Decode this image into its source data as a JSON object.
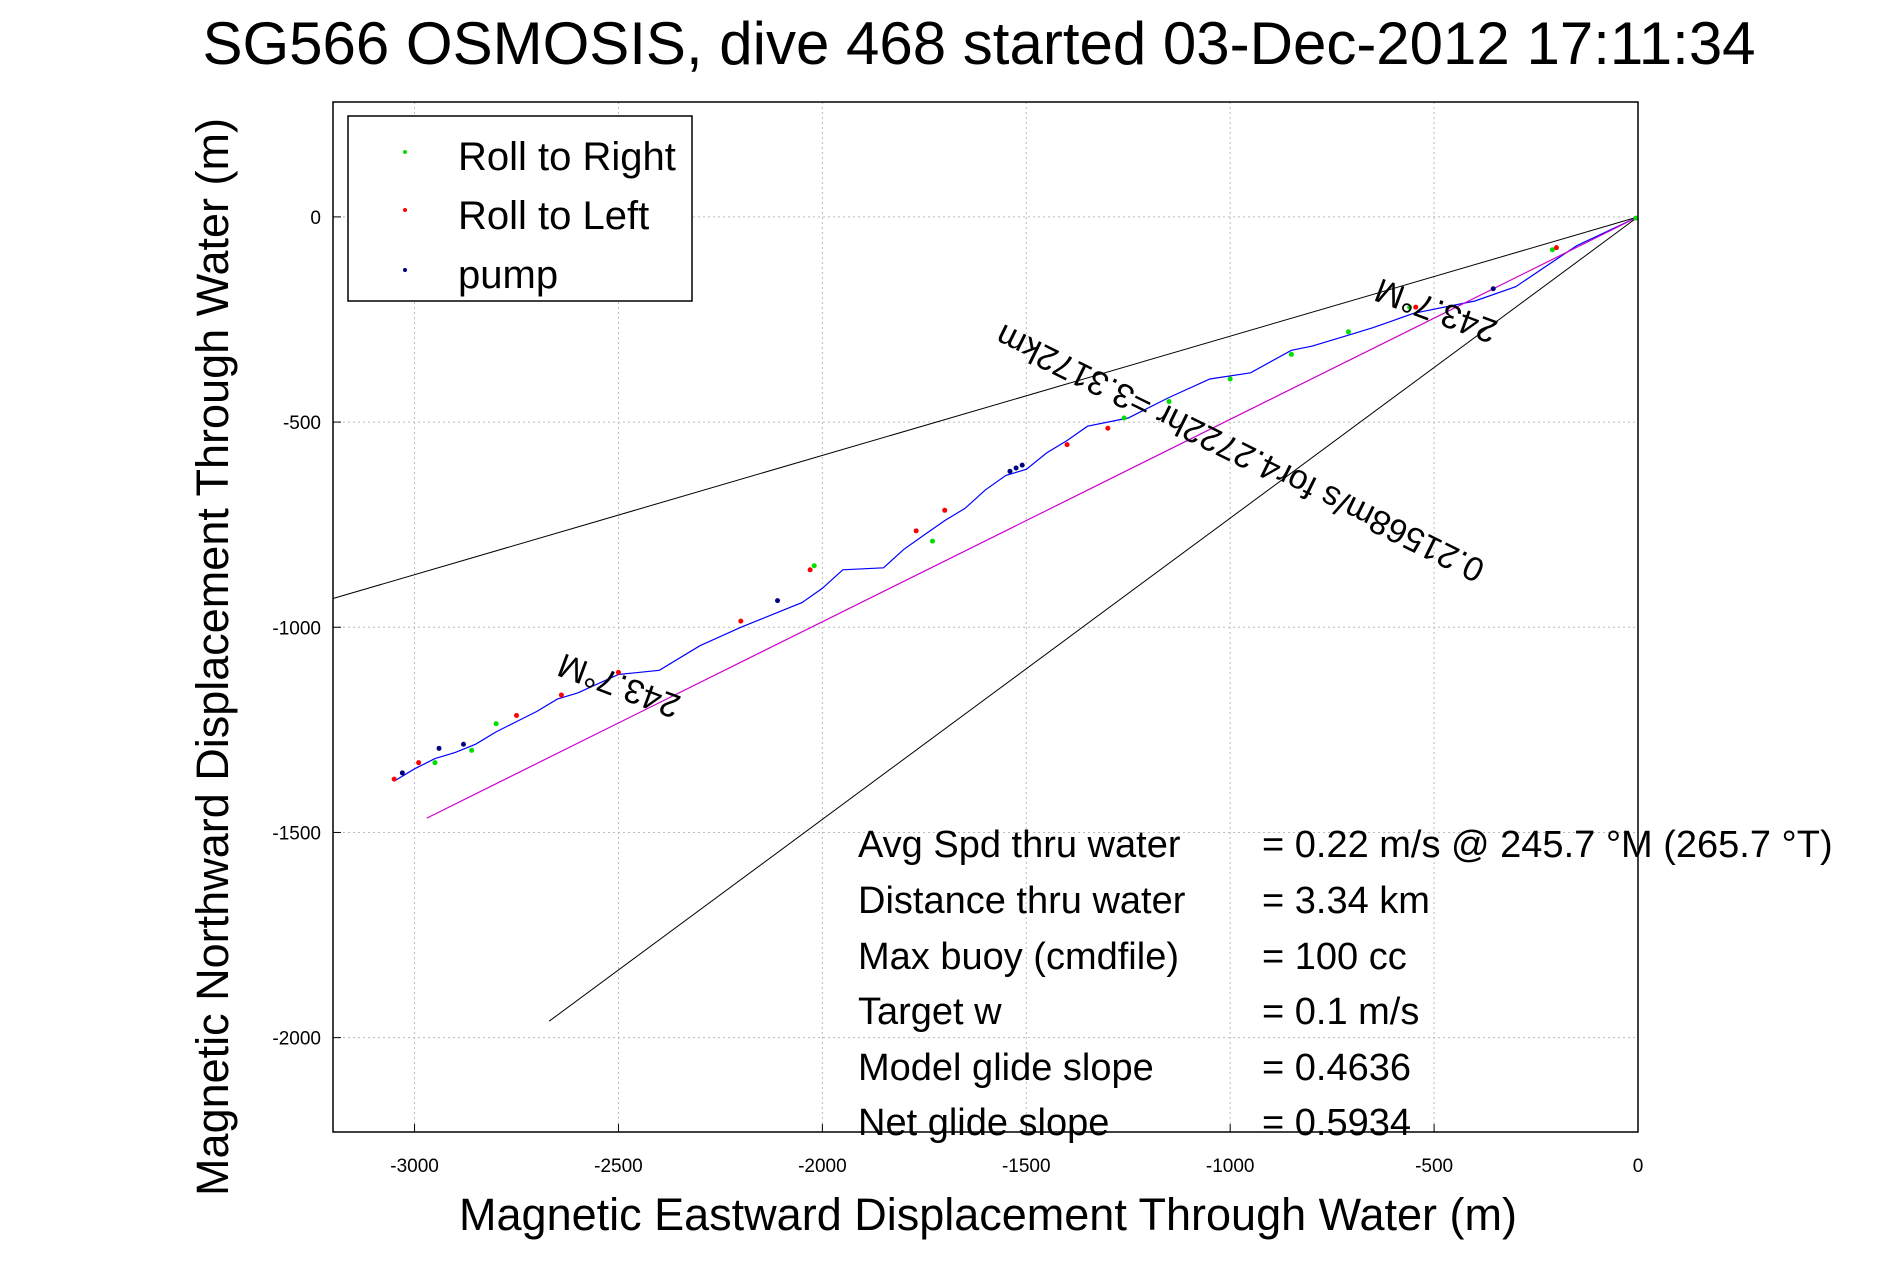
{
  "chart_data": {
    "type": "line",
    "title": "SG566 OSMOSIS, dive 468 started 03-Dec-2012 17:11:34",
    "xlabel": "Magnetic Eastward Displacement Through Water (m)",
    "ylabel": "Magnetic Northward Displacement Through Water (m)",
    "xlim": [
      -3200,
      0
    ],
    "ylim": [
      -2230,
      280
    ],
    "xticks": [
      -3000,
      -2500,
      -2000,
      -1500,
      -1000,
      -500,
      0
    ],
    "yticks": [
      0,
      -500,
      -1000,
      -1500,
      -2000
    ],
    "grid": true,
    "legend_position": "top-left",
    "legend": [
      {
        "label": "Roll to Right",
        "color": "#00e000"
      },
      {
        "label": "Roll to Left",
        "color": "#ff0000"
      },
      {
        "label": "pump",
        "color": "#000080"
      }
    ],
    "series": [
      {
        "color": "#0000ff",
        "x": [
          0,
          -150,
          -300,
          -400,
          -550,
          -650,
          -700,
          -800,
          -850,
          -950,
          -1050,
          -1150,
          -1250,
          -1350,
          -1400,
          -1450,
          -1500,
          -1550,
          -1600,
          -1650,
          -1700,
          -1750,
          -1800,
          -1850,
          -1950,
          -2000,
          -2050,
          -2100,
          -2150,
          -2200,
          -2300,
          -2400,
          -2500,
          -2600,
          -2650,
          -2700,
          -2750,
          -2800,
          -2850,
          -2900,
          -2950,
          -3000,
          -3050
        ],
        "y": [
          0,
          -70,
          -170,
          -205,
          -235,
          -270,
          -285,
          -315,
          -325,
          -380,
          -395,
          -440,
          -490,
          -510,
          -545,
          -575,
          -615,
          -630,
          -665,
          -710,
          -740,
          -775,
          -810,
          -855,
          -860,
          -905,
          -940,
          -960,
          -980,
          -1000,
          -1045,
          -1105,
          -1115,
          -1160,
          -1175,
          -1205,
          -1230,
          -1255,
          -1285,
          -1305,
          -1320,
          -1345,
          -1375
        ]
      },
      {
        "color": "#cc00cc",
        "x": [
          0,
          -2970
        ],
        "y": [
          0,
          -1465
        ]
      }
    ],
    "markers": {
      "roll_right": {
        "color": "#00e000",
        "x": [
          -5,
          -210,
          -560,
          -710,
          -850,
          -1000,
          -1150,
          -1260,
          -1730,
          -2020,
          -2800,
          -2860,
          -2950
        ],
        "y": [
          -3,
          -80,
          -220,
          -280,
          -335,
          -395,
          -450,
          -490,
          -790,
          -850,
          -1235,
          -1300,
          -1330
        ]
      },
      "roll_left": {
        "color": "#ff0000",
        "x": [
          -200,
          -545,
          -1300,
          -1400,
          -1700,
          -1770,
          -2030,
          -2200,
          -2500,
          -2640,
          -2750,
          -2990,
          -3050
        ],
        "y": [
          -75,
          -220,
          -515,
          -555,
          -715,
          -765,
          -860,
          -985,
          -1110,
          -1165,
          -1215,
          -1330,
          -1370
        ]
      },
      "pump": {
        "color": "#000080",
        "x": [
          -355,
          -1510,
          -1525,
          -1540,
          -2110,
          -2880,
          -2940,
          -3030
        ],
        "y": [
          -175,
          -605,
          -612,
          -620,
          -935,
          -1285,
          -1295,
          -1355
        ]
      }
    },
    "reference_lines": [
      {
        "color": "#000000",
        "x": [
          0,
          -3200
        ],
        "y": [
          0,
          -930
        ]
      },
      {
        "color": "#000000",
        "x": [
          0,
          -2670
        ],
        "y": [
          0,
          -1960
        ]
      }
    ],
    "annotations": {
      "heading_top": "243.7°M",
      "heading_mid": "243.7°M",
      "speed_note": "0.21568m/s for4.2722hr =3.3172km"
    },
    "stats": [
      {
        "label": "Avg Spd thru water",
        "value": "=  0.22 m/s @ 245.7 °M (265.7 °T)"
      },
      {
        "label": "Distance thru water",
        "value": "=  3.34 km"
      },
      {
        "label": "Max buoy (cmdfile)",
        "value": "= 100 cc"
      },
      {
        "label": "Target w",
        "value": "= 0.1 m/s"
      },
      {
        "label": "Model glide slope",
        "value": "= 0.4636"
      },
      {
        "label": "Net glide slope",
        "value": "= 0.5934"
      }
    ]
  }
}
